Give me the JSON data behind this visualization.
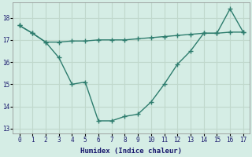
{
  "xlabel": "Humidex (Indice chaleur)",
  "x_ticks": [
    0,
    1,
    2,
    3,
    4,
    5,
    6,
    7,
    8,
    9,
    10,
    11,
    12,
    13,
    14,
    15,
    16,
    17
  ],
  "xlim": [
    -0.5,
    17.5
  ],
  "ylim": [
    12.8,
    18.7
  ],
  "y_ticks": [
    13,
    14,
    15,
    16,
    17,
    18
  ],
  "line1_x": [
    0,
    1,
    2,
    3,
    4,
    5,
    6,
    7,
    8,
    9,
    10,
    11,
    12,
    13,
    14,
    15,
    16,
    17
  ],
  "line1_y": [
    17.65,
    17.3,
    16.9,
    16.2,
    15.0,
    15.1,
    13.35,
    13.35,
    13.55,
    13.65,
    14.2,
    15.0,
    15.9,
    16.5,
    17.3,
    17.3,
    18.4,
    17.35
  ],
  "line2_x": [
    0,
    1,
    2,
    3,
    4,
    5,
    6,
    7,
    8,
    9,
    10,
    11,
    12,
    13,
    14,
    15,
    16,
    17
  ],
  "line2_y": [
    17.65,
    17.3,
    16.9,
    16.9,
    16.95,
    16.95,
    17.0,
    17.0,
    17.0,
    17.05,
    17.1,
    17.15,
    17.2,
    17.25,
    17.3,
    17.3,
    17.35,
    17.35
  ],
  "line_color": "#2e7d6e",
  "bg_color": "#d5ede5",
  "grid_color": "#c0d8cc",
  "marker": "+",
  "marker_size": 4,
  "markeredgewidth": 1.0,
  "linewidth": 1.0,
  "xlabel_fontsize": 6.5,
  "tick_labelsize": 5.5
}
